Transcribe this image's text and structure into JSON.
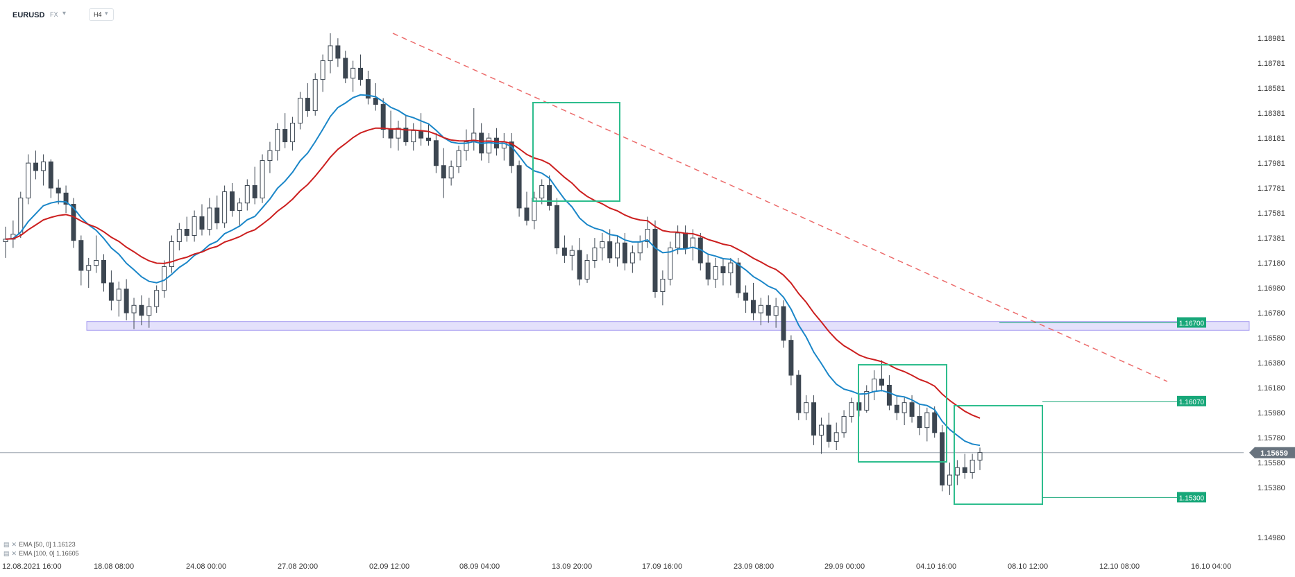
{
  "header": {
    "symbol": "EURUSD",
    "market": "FX",
    "timeframe": "H4"
  },
  "legend": [
    {
      "label": "EMA [50, 0] 1.16123",
      "color": "#1a86c8"
    },
    {
      "label": "EMA [100, 0] 1.16605",
      "color": "#cc1f1f"
    }
  ],
  "colors": {
    "candle": "#3c4651",
    "ema50": "#1a86c8",
    "ema100": "#cc1f1f",
    "trendline": "#ec6b6b",
    "box": "#2dbd8d",
    "zone_fill": "#e4e1fb",
    "zone_stroke": "#a79cf0",
    "tag": "#17a779",
    "price_tag": "#68737e"
  },
  "chart_data": {
    "type": "candlestick",
    "symbol": "EURUSD",
    "timeframe": "H4",
    "ylim": [
      1.1497,
      1.1906
    ],
    "y_ticks": [
      "1.18981",
      "1.18781",
      "1.18581",
      "1.18381",
      "1.18181",
      "1.17981",
      "1.17781",
      "1.17581",
      "1.17381",
      "1.17180",
      "1.16980",
      "1.16780",
      "1.16580",
      "1.16380",
      "1.16180",
      "1.15980",
      "1.15780",
      "1.15580",
      "1.15380",
      "1.14980"
    ],
    "x_ticks": [
      "12.08.2021  16:00",
      "18.08  08:00",
      "24.08  00:00",
      "27.08  20:00",
      "02.09  12:00",
      "08.09  04:00",
      "13.09  20:00",
      "17.09  16:00",
      "23.09  08:00",
      "29.09  00:00",
      "04.10  16:00",
      "08.10  12:00",
      "12.10  08:00",
      "16.10  04:00"
    ],
    "current_price": "1.15659",
    "levels": [
      {
        "label": "1.16700",
        "value": 1.167
      },
      {
        "label": "1.16070",
        "value": 1.1607
      },
      {
        "label": "1.15300",
        "value": 1.153
      }
    ],
    "support_zone": {
      "low": 1.1664,
      "high": 1.1671
    },
    "trendline": {
      "start": {
        "date": "03.09",
        "price": 1.1902
      },
      "end": {
        "date": "11.10",
        "price": 1.1623
      }
    },
    "ema50_last": 1.16123,
    "ema100_last": 1.16605,
    "ohlc": [
      [
        1.1735,
        1.1747,
        1.1722,
        1.1737
      ],
      [
        1.1737,
        1.1752,
        1.173,
        1.1741
      ],
      [
        1.1741,
        1.1775,
        1.1738,
        1.177
      ],
      [
        1.177,
        1.1805,
        1.1765,
        1.1798
      ],
      [
        1.1798,
        1.1808,
        1.1785,
        1.1792
      ],
      [
        1.1792,
        1.1805,
        1.178,
        1.1799
      ],
      [
        1.1799,
        1.1801,
        1.177,
        1.1778
      ],
      [
        1.1778,
        1.1785,
        1.1765,
        1.1774
      ],
      [
        1.1774,
        1.178,
        1.1758,
        1.1765
      ],
      [
        1.1765,
        1.177,
        1.173,
        1.1736
      ],
      [
        1.1736,
        1.174,
        1.17,
        1.1712
      ],
      [
        1.1712,
        1.1722,
        1.1698,
        1.1716
      ],
      [
        1.1716,
        1.174,
        1.171,
        1.172
      ],
      [
        1.172,
        1.1725,
        1.1695,
        1.1702
      ],
      [
        1.1702,
        1.1712,
        1.168,
        1.1688
      ],
      [
        1.1688,
        1.1703,
        1.1675,
        1.1697
      ],
      [
        1.1697,
        1.1705,
        1.1672,
        1.1678
      ],
      [
        1.1678,
        1.169,
        1.1665,
        1.1684
      ],
      [
        1.1684,
        1.1692,
        1.1668,
        1.1676
      ],
      [
        1.1676,
        1.169,
        1.1666,
        1.1683
      ],
      [
        1.1683,
        1.17,
        1.1678,
        1.1696
      ],
      [
        1.1696,
        1.172,
        1.169,
        1.1715
      ],
      [
        1.1715,
        1.174,
        1.171,
        1.1735
      ],
      [
        1.1735,
        1.175,
        1.1728,
        1.1745
      ],
      [
        1.1745,
        1.1755,
        1.1735,
        1.174
      ],
      [
        1.174,
        1.176,
        1.1735,
        1.1755
      ],
      [
        1.1755,
        1.1765,
        1.174,
        1.1745
      ],
      [
        1.1745,
        1.177,
        1.174,
        1.1762
      ],
      [
        1.1762,
        1.1772,
        1.1745,
        1.175
      ],
      [
        1.175,
        1.178,
        1.1746,
        1.1775
      ],
      [
        1.1775,
        1.1782,
        1.1755,
        1.176
      ],
      [
        1.176,
        1.177,
        1.1748,
        1.1766
      ],
      [
        1.1766,
        1.1785,
        1.176,
        1.178
      ],
      [
        1.178,
        1.1795,
        1.1765,
        1.177
      ],
      [
        1.177,
        1.1805,
        1.1766,
        1.18
      ],
      [
        1.18,
        1.1815,
        1.179,
        1.1808
      ],
      [
        1.1808,
        1.183,
        1.18,
        1.1825
      ],
      [
        1.1825,
        1.1838,
        1.181,
        1.1815
      ],
      [
        1.1815,
        1.1835,
        1.1808,
        1.183
      ],
      [
        1.183,
        1.1855,
        1.1825,
        1.185
      ],
      [
        1.185,
        1.1862,
        1.1835,
        1.184
      ],
      [
        1.184,
        1.187,
        1.1836,
        1.1865
      ],
      [
        1.1865,
        1.1885,
        1.1855,
        1.188
      ],
      [
        1.188,
        1.1902,
        1.187,
        1.1892
      ],
      [
        1.1892,
        1.1898,
        1.1875,
        1.1882
      ],
      [
        1.1882,
        1.1888,
        1.1862,
        1.1866
      ],
      [
        1.1866,
        1.188,
        1.1855,
        1.1874
      ],
      [
        1.1874,
        1.1885,
        1.186,
        1.1865
      ],
      [
        1.1865,
        1.1872,
        1.1845,
        1.185
      ],
      [
        1.185,
        1.1862,
        1.184,
        1.1845
      ],
      [
        1.1845,
        1.185,
        1.1818,
        1.1825
      ],
      [
        1.1825,
        1.184,
        1.181,
        1.1818
      ],
      [
        1.1818,
        1.1832,
        1.1808,
        1.1826
      ],
      [
        1.1826,
        1.1836,
        1.1812,
        1.1815
      ],
      [
        1.1815,
        1.183,
        1.1808,
        1.1824
      ],
      [
        1.1824,
        1.1838,
        1.1812,
        1.1818
      ],
      [
        1.1818,
        1.183,
        1.1812,
        1.1816
      ],
      [
        1.1816,
        1.1822,
        1.179,
        1.1796
      ],
      [
        1.1796,
        1.181,
        1.177,
        1.1786
      ],
      [
        1.1786,
        1.18,
        1.178,
        1.1795
      ],
      [
        1.1795,
        1.1812,
        1.179,
        1.1808
      ],
      [
        1.1808,
        1.1825,
        1.18,
        1.1815
      ],
      [
        1.1815,
        1.1842,
        1.1808,
        1.1822
      ],
      [
        1.1822,
        1.183,
        1.18,
        1.1806
      ],
      [
        1.1806,
        1.1822,
        1.1798,
        1.1818
      ],
      [
        1.1818,
        1.1826,
        1.1804,
        1.181
      ],
      [
        1.181,
        1.1822,
        1.18,
        1.1815
      ],
      [
        1.1815,
        1.1822,
        1.179,
        1.1796
      ],
      [
        1.1796,
        1.18,
        1.1755,
        1.1762
      ],
      [
        1.1762,
        1.1775,
        1.1748,
        1.1752
      ],
      [
        1.1752,
        1.1775,
        1.1745,
        1.177
      ],
      [
        1.177,
        1.1785,
        1.1765,
        1.178
      ],
      [
        1.178,
        1.1788,
        1.176,
        1.1764
      ],
      [
        1.1764,
        1.177,
        1.1725,
        1.173
      ],
      [
        1.173,
        1.174,
        1.1718,
        1.1724
      ],
      [
        1.1724,
        1.1732,
        1.1712,
        1.1728
      ],
      [
        1.1728,
        1.1738,
        1.17,
        1.1705
      ],
      [
        1.1705,
        1.1725,
        1.1702,
        1.172
      ],
      [
        1.172,
        1.1738,
        1.1714,
        1.173
      ],
      [
        1.173,
        1.1742,
        1.172,
        1.1735
      ],
      [
        1.1735,
        1.1745,
        1.1718,
        1.1722
      ],
      [
        1.1722,
        1.174,
        1.1715,
        1.1734
      ],
      [
        1.1734,
        1.1742,
        1.1712,
        1.1718
      ],
      [
        1.1718,
        1.1732,
        1.171,
        1.1726
      ],
      [
        1.1726,
        1.174,
        1.172,
        1.1735
      ],
      [
        1.1735,
        1.1755,
        1.173,
        1.1745
      ],
      [
        1.1745,
        1.1752,
        1.169,
        1.1695
      ],
      [
        1.1695,
        1.1712,
        1.1684,
        1.1705
      ],
      [
        1.1705,
        1.1735,
        1.17,
        1.173
      ],
      [
        1.173,
        1.1748,
        1.1725,
        1.1742
      ],
      [
        1.1742,
        1.1748,
        1.1725,
        1.173
      ],
      [
        1.173,
        1.1745,
        1.172,
        1.1738
      ],
      [
        1.1738,
        1.1742,
        1.1712,
        1.1718
      ],
      [
        1.1718,
        1.1725,
        1.17,
        1.1705
      ],
      [
        1.1705,
        1.1722,
        1.1698,
        1.1715
      ],
      [
        1.1715,
        1.1722,
        1.17,
        1.171
      ],
      [
        1.171,
        1.1722,
        1.17,
        1.1718
      ],
      [
        1.1718,
        1.1722,
        1.169,
        1.1694
      ],
      [
        1.1694,
        1.17,
        1.1678,
        1.1688
      ],
      [
        1.1688,
        1.1702,
        1.1672,
        1.1678
      ],
      [
        1.1678,
        1.169,
        1.1668,
        1.1684
      ],
      [
        1.1684,
        1.1692,
        1.167,
        1.1676
      ],
      [
        1.1676,
        1.169,
        1.1666,
        1.1683
      ],
      [
        1.1683,
        1.1688,
        1.165,
        1.1656
      ],
      [
        1.1656,
        1.166,
        1.162,
        1.1628
      ],
      [
        1.1628,
        1.1632,
        1.1592,
        1.1598
      ],
      [
        1.1598,
        1.1612,
        1.1592,
        1.1606
      ],
      [
        1.1606,
        1.1612,
        1.1572,
        1.158
      ],
      [
        1.158,
        1.1594,
        1.1565,
        1.1588
      ],
      [
        1.1588,
        1.1598,
        1.157,
        1.1575
      ],
      [
        1.1575,
        1.159,
        1.1568,
        1.1582
      ],
      [
        1.1582,
        1.16,
        1.1578,
        1.1595
      ],
      [
        1.1595,
        1.161,
        1.159,
        1.1606
      ],
      [
        1.1606,
        1.1612,
        1.1595,
        1.16
      ],
      [
        1.16,
        1.162,
        1.1598,
        1.1615
      ],
      [
        1.1615,
        1.1632,
        1.1608,
        1.1625
      ],
      [
        1.1625,
        1.164,
        1.1615,
        1.162
      ],
      [
        1.162,
        1.1628,
        1.16,
        1.1604
      ],
      [
        1.1604,
        1.1612,
        1.1592,
        1.1598
      ],
      [
        1.1598,
        1.161,
        1.1588,
        1.1606
      ],
      [
        1.1606,
        1.1612,
        1.159,
        1.1595
      ],
      [
        1.1595,
        1.1605,
        1.158,
        1.1586
      ],
      [
        1.1586,
        1.1602,
        1.1575,
        1.1598
      ],
      [
        1.1598,
        1.1603,
        1.1578,
        1.1582
      ],
      [
        1.1582,
        1.1588,
        1.1535,
        1.154
      ],
      [
        1.154,
        1.1558,
        1.1532,
        1.1548
      ],
      [
        1.1548,
        1.156,
        1.154,
        1.1554
      ],
      [
        1.1554,
        1.1565,
        1.1545,
        1.155
      ],
      [
        1.155,
        1.1565,
        1.1545,
        1.156
      ],
      [
        1.156,
        1.157,
        1.1552,
        1.1566
      ]
    ]
  }
}
